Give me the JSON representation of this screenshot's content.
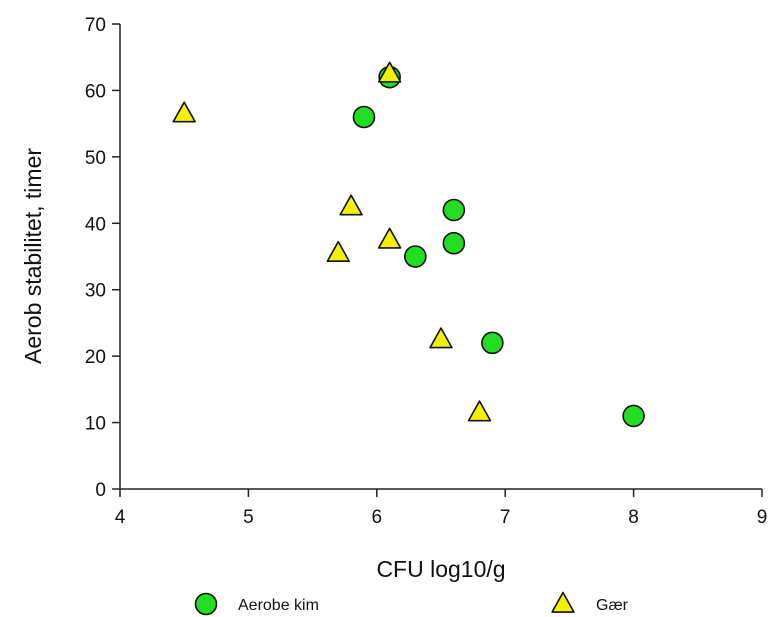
{
  "chart_data": {
    "type": "scatter",
    "xlabel": "CFU log10/g",
    "ylabel": "Aerob stabilitet, timer",
    "xlim": [
      4,
      9
    ],
    "ylim": [
      0,
      70
    ],
    "xticks": [
      4,
      5,
      6,
      7,
      8,
      9
    ],
    "yticks": [
      0,
      10,
      20,
      30,
      40,
      50,
      60,
      70
    ],
    "grid": false,
    "legend_position": "bottom",
    "series": [
      {
        "name": "Aerobe kim",
        "marker": "circle",
        "color": "#22dd22",
        "points": [
          {
            "x": 6.1,
            "y": 62
          },
          {
            "x": 5.9,
            "y": 56
          },
          {
            "x": 6.6,
            "y": 42
          },
          {
            "x": 6.6,
            "y": 37
          },
          {
            "x": 6.3,
            "y": 35
          },
          {
            "x": 6.9,
            "y": 22
          },
          {
            "x": 8.0,
            "y": 11
          }
        ]
      },
      {
        "name": "Gær",
        "marker": "triangle",
        "color": "#f2f200",
        "points": [
          {
            "x": 6.1,
            "y": 62.5
          },
          {
            "x": 4.5,
            "y": 56.5
          },
          {
            "x": 5.8,
            "y": 42.5
          },
          {
            "x": 6.1,
            "y": 37.5
          },
          {
            "x": 5.7,
            "y": 35.5
          },
          {
            "x": 6.5,
            "y": 22.5
          },
          {
            "x": 6.8,
            "y": 11.5
          }
        ]
      }
    ]
  }
}
